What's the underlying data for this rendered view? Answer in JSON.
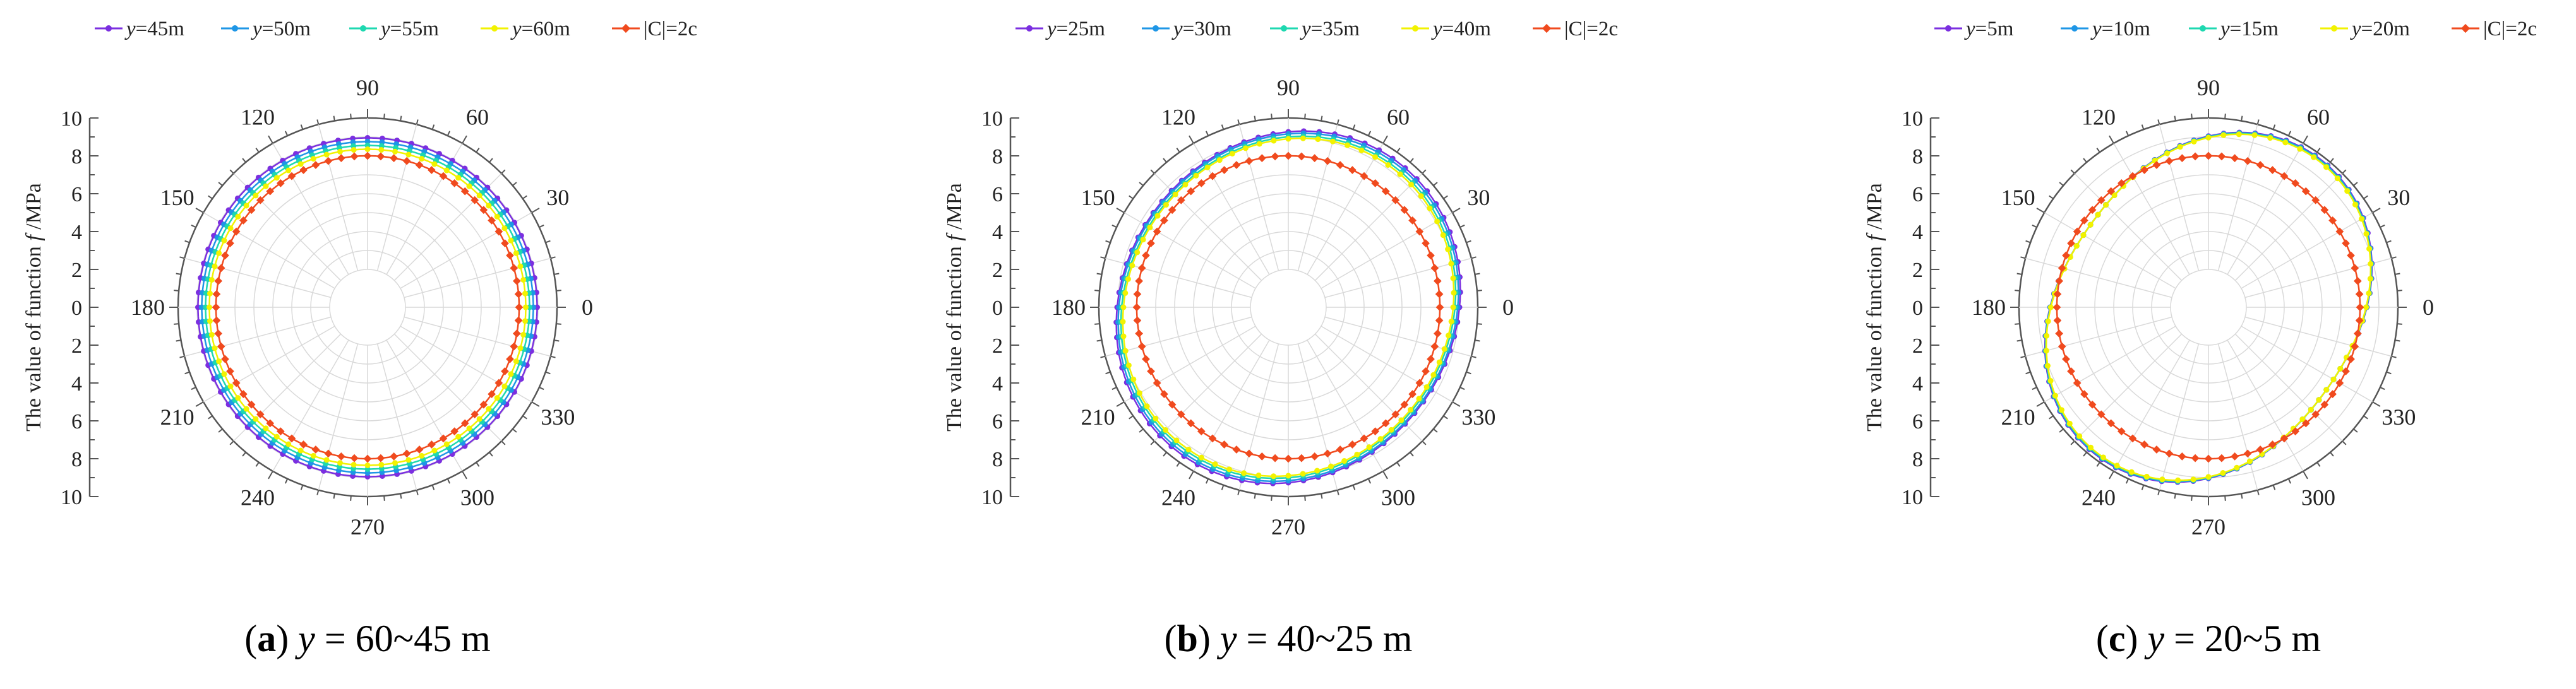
{
  "chart_data": [
    {
      "type": "polar-line",
      "caption": {
        "letter": "a",
        "var": "y",
        "text": " = 60~45 m"
      },
      "ylabel": "The value of function ",
      "ylabel_var": "f",
      "ylabel_unit": " /MPa",
      "r_range": [
        0,
        10
      ],
      "r_ticks": [
        0,
        2,
        4,
        6,
        8,
        10
      ],
      "angle_labels": [
        "0",
        "30",
        "60",
        "90",
        "120",
        "150",
        "180",
        "210",
        "240",
        "270",
        "300",
        "330"
      ],
      "legend": [
        {
          "var": "y",
          "text": "=45m",
          "color": "#7B2FE0"
        },
        {
          "var": "y",
          "text": "=50m",
          "color": "#1E96E6"
        },
        {
          "var": "y",
          "text": "=55m",
          "color": "#1ED8B0"
        },
        {
          "var": "y",
          "text": "=60m",
          "color": "#F2F200"
        },
        {
          "var": "",
          "text": "|C|=2c",
          "color": "#F04A1E"
        }
      ],
      "series": [
        {
          "name": "y=45m",
          "color": "#7B2FE0",
          "r0": 8.95,
          "a2": 0.0,
          "a4": 0.0,
          "phase": 0,
          "tilt": 0
        },
        {
          "name": "y=50m",
          "color": "#1E96E6",
          "r0": 8.75,
          "a2": 0.0,
          "a4": 0.0,
          "phase": 0,
          "tilt": 0
        },
        {
          "name": "y=55m",
          "color": "#1ED8B0",
          "r0": 8.55,
          "a2": 0.0,
          "a4": 0.0,
          "phase": 0,
          "tilt": 0
        },
        {
          "name": "y=60m",
          "color": "#F2F200",
          "r0": 8.35,
          "a2": 0.0,
          "a4": 0.0,
          "phase": 0,
          "tilt": 0
        },
        {
          "name": "|C|=2c",
          "color": "#F04A1E",
          "r0": 8.0,
          "a2": 0.0,
          "a4": 0.0,
          "phase": 0,
          "tilt": 0
        }
      ]
    },
    {
      "type": "polar-line",
      "caption": {
        "letter": "b",
        "var": "y",
        "text": " = 40~25 m"
      },
      "ylabel": "The value of function ",
      "ylabel_var": "f",
      "ylabel_unit": " /MPa",
      "r_range": [
        0,
        10
      ],
      "r_ticks": [
        0,
        2,
        4,
        6,
        8,
        10
      ],
      "angle_labels": [
        "0",
        "30",
        "60",
        "90",
        "120",
        "150",
        "180",
        "210",
        "240",
        "270",
        "300",
        "330"
      ],
      "legend": [
        {
          "var": "y",
          "text": "=25m",
          "color": "#7B2FE0"
        },
        {
          "var": "y",
          "text": "=30m",
          "color": "#1E96E6"
        },
        {
          "var": "y",
          "text": "=35m",
          "color": "#1ED8B0"
        },
        {
          "var": "y",
          "text": "=40m",
          "color": "#F2F200"
        },
        {
          "var": "",
          "text": "|C|=2c",
          "color": "#F04A1E"
        }
      ],
      "series": [
        {
          "name": "y=25m",
          "color": "#7B2FE0",
          "r0": 9.15,
          "a2": 0.0,
          "a4": 0.45,
          "phase": 0,
          "tilt": -15
        },
        {
          "name": "y=30m",
          "color": "#1E96E6",
          "r0": 9.05,
          "a2": 0.0,
          "a4": 0.42,
          "phase": 0,
          "tilt": -15
        },
        {
          "name": "y=35m",
          "color": "#1ED8B0",
          "r0": 8.9,
          "a2": 0.0,
          "a4": 0.4,
          "phase": 0,
          "tilt": -15
        },
        {
          "name": "y=40m",
          "color": "#F2F200",
          "r0": 8.8,
          "a2": 0.0,
          "a4": 0.38,
          "phase": 0,
          "tilt": -15
        },
        {
          "name": "|C|=2c",
          "color": "#F04A1E",
          "r0": 8.0,
          "a2": 0.0,
          "a4": 0.0,
          "phase": 0,
          "tilt": 0
        }
      ]
    },
    {
      "type": "polar-line",
      "caption": {
        "letter": "c",
        "var": "y",
        "text": " = 20~5 m"
      },
      "ylabel": "The value of function ",
      "ylabel_var": "f",
      "ylabel_unit": " /MPa",
      "r_range": [
        0,
        10
      ],
      "r_ticks": [
        0,
        2,
        4,
        6,
        8,
        10
      ],
      "angle_labels": [
        "0",
        "30",
        "60",
        "90",
        "120",
        "150",
        "180",
        "210",
        "240",
        "270",
        "300",
        "330"
      ],
      "legend": [
        {
          "var": "y",
          "text": "=5m",
          "color": "#7B2FE0"
        },
        {
          "var": "y",
          "text": "=10m",
          "color": "#1E96E6"
        },
        {
          "var": "y",
          "text": "=15m",
          "color": "#1ED8B0"
        },
        {
          "var": "y",
          "text": "=20m",
          "color": "#F2F200"
        },
        {
          "var": "",
          "text": "|C|=2c",
          "color": "#F04A1E"
        }
      ],
      "series": [
        {
          "name": "y=5m",
          "color": "#7B2FE0",
          "r0": 8.7,
          "a2": 0.0,
          "a4": 1.1,
          "phase": 0,
          "tilt": -18
        },
        {
          "name": "y=10m",
          "color": "#1E96E6",
          "r0": 8.68,
          "a2": 0.0,
          "a4": 1.08,
          "phase": 0,
          "tilt": -18
        },
        {
          "name": "y=15m",
          "color": "#1ED8B0",
          "r0": 8.66,
          "a2": 0.0,
          "a4": 1.06,
          "phase": 0,
          "tilt": -18
        },
        {
          "name": "y=20m",
          "color": "#F2F200",
          "r0": 8.64,
          "a2": 0.0,
          "a4": 1.04,
          "phase": 0,
          "tilt": -18
        },
        {
          "name": "|C|=2c",
          "color": "#F04A1E",
          "r0": 8.0,
          "a2": 0.0,
          "a4": 0.0,
          "phase": 0,
          "tilt": 0
        }
      ]
    }
  ]
}
